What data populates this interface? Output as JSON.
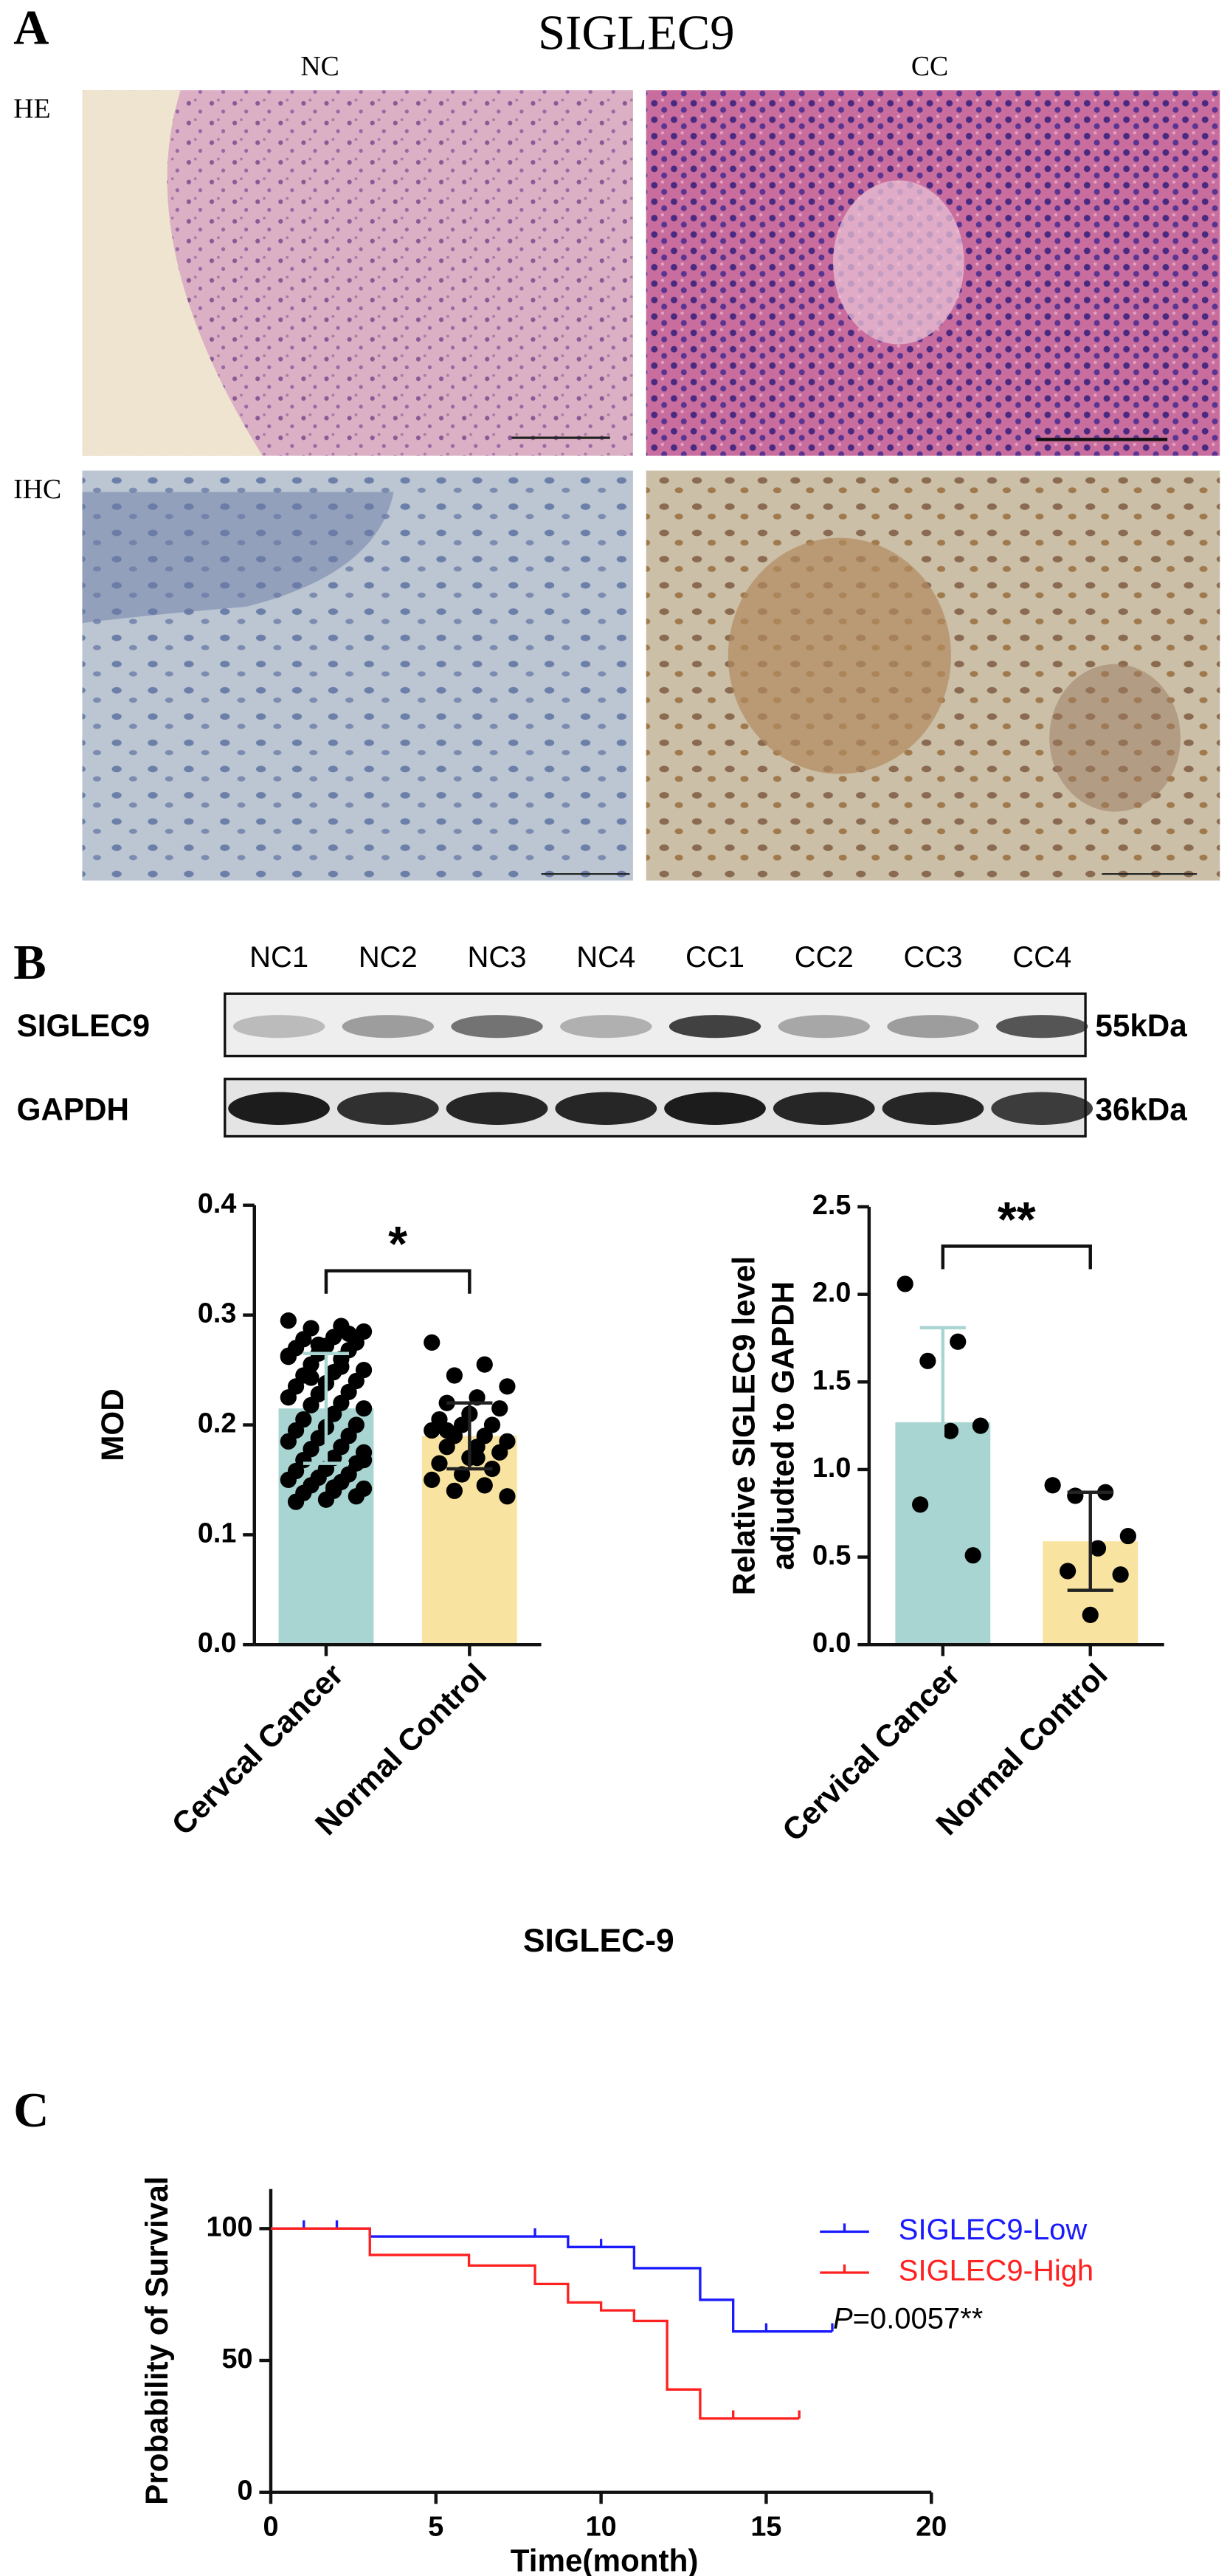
{
  "panel_a": {
    "label": "A",
    "title": "SIGLEC9",
    "columns": [
      "NC",
      "CC"
    ],
    "rows": [
      "HE",
      "IHC"
    ]
  },
  "panel_b": {
    "label": "B",
    "lanes": [
      "NC1",
      "NC2",
      "NC3",
      "NC4",
      "CC1",
      "CC2",
      "CC3",
      "CC4"
    ],
    "bands": [
      {
        "name": "SIGLEC9",
        "size": "55kDa"
      },
      {
        "name": "GAPDH",
        "size": "36kDa"
      }
    ],
    "caption": "SIGLEC-9"
  },
  "panel_c": {
    "label": "C"
  },
  "chart_data": [
    {
      "type": "bar",
      "ylabel": "MOD",
      "categories": [
        "Cervcal Cancer",
        "Normal  Control"
      ],
      "values": [
        0.215,
        0.19
      ],
      "errors": [
        0.05,
        0.03
      ],
      "colors": [
        "#a8d5d1",
        "#f8e3a0"
      ],
      "points": [
        [
          0.295,
          0.29,
          0.288,
          0.285,
          0.28,
          0.278,
          0.275,
          0.272,
          0.27,
          0.268,
          0.265,
          0.262,
          0.26,
          0.255,
          0.25,
          0.248,
          0.245,
          0.24,
          0.238,
          0.235,
          0.23,
          0.228,
          0.225,
          0.22,
          0.218,
          0.215,
          0.21,
          0.205,
          0.2,
          0.198,
          0.195,
          0.19,
          0.188,
          0.185,
          0.18,
          0.178,
          0.175,
          0.17,
          0.168,
          0.165,
          0.16,
          0.158,
          0.155,
          0.152,
          0.15,
          0.148,
          0.145,
          0.142,
          0.14,
          0.138,
          0.135,
          0.132,
          0.13,
          0.283,
          0.273,
          0.263,
          0.253,
          0.243,
          0.168,
          0.143
        ],
        [
          0.275,
          0.255,
          0.245,
          0.235,
          0.225,
          0.22,
          0.215,
          0.21,
          0.205,
          0.2,
          0.2,
          0.195,
          0.19,
          0.19,
          0.185,
          0.18,
          0.18,
          0.175,
          0.17,
          0.165,
          0.16,
          0.155,
          0.15,
          0.145,
          0.14,
          0.135,
          0.17,
          0.195
        ]
      ],
      "annotation": "*",
      "ylim": [
        0,
        0.4
      ],
      "yticks": [
        {
          "value": 0,
          "label": "0.0"
        },
        0.1,
        0.2,
        0.3,
        0.4
      ]
    },
    {
      "type": "bar",
      "ylabel": [
        "Relative SIGLEC9 level",
        "adjudted to GAPDH"
      ],
      "categories": [
        "Cervical Cancer",
        "Normal  Control"
      ],
      "values": [
        1.27,
        0.59
      ],
      "errors": [
        0.54,
        0.28
      ],
      "colors": [
        "#a8d5d1",
        "#f8e3a0"
      ],
      "points": [
        [
          2.06,
          1.73,
          1.62,
          1.25,
          1.22,
          0.8,
          0.51
        ],
        [
          0.91,
          0.87,
          0.85,
          0.62,
          0.55,
          0.42,
          0.4,
          0.17
        ]
      ],
      "annotation": "**",
      "ylim": [
        0,
        2.5
      ],
      "yticks": [
        {
          "value": 0,
          "label": "0.0"
        },
        0.5,
        {
          "value": 1,
          "label": "1.0"
        },
        1.5,
        {
          "value": 2,
          "label": "2.0"
        },
        2.5
      ]
    },
    {
      "type": "line",
      "xlabel": "Time(month)",
      "ylabel": "Probability of Survival",
      "series": [
        {
          "name": "SIGLEC9-Low",
          "color": "#1a1aff",
          "x": [
            0,
            3,
            9,
            11,
            13,
            14,
            17
          ],
          "values": [
            100,
            97,
            93,
            85,
            73,
            61,
            61
          ],
          "censored": [
            1,
            2,
            8,
            10,
            15,
            17
          ]
        },
        {
          "name": "SIGLEC9-High",
          "color": "#ff2020",
          "x": [
            0,
            3,
            6,
            8,
            9,
            10,
            11,
            12,
            13,
            16
          ],
          "values": [
            100,
            90,
            86,
            79,
            72,
            69,
            65,
            39,
            28,
            28
          ],
          "censored": [
            14,
            16
          ]
        }
      ],
      "annotation": {
        "italic": "P",
        "text": "=0.0057**"
      },
      "legend": "upper right",
      "xlim": [
        0,
        20
      ],
      "xticks": [
        0,
        5,
        10,
        15,
        20
      ],
      "ylim": [
        0,
        115
      ],
      "yticks": [
        0,
        50,
        100
      ]
    }
  ]
}
